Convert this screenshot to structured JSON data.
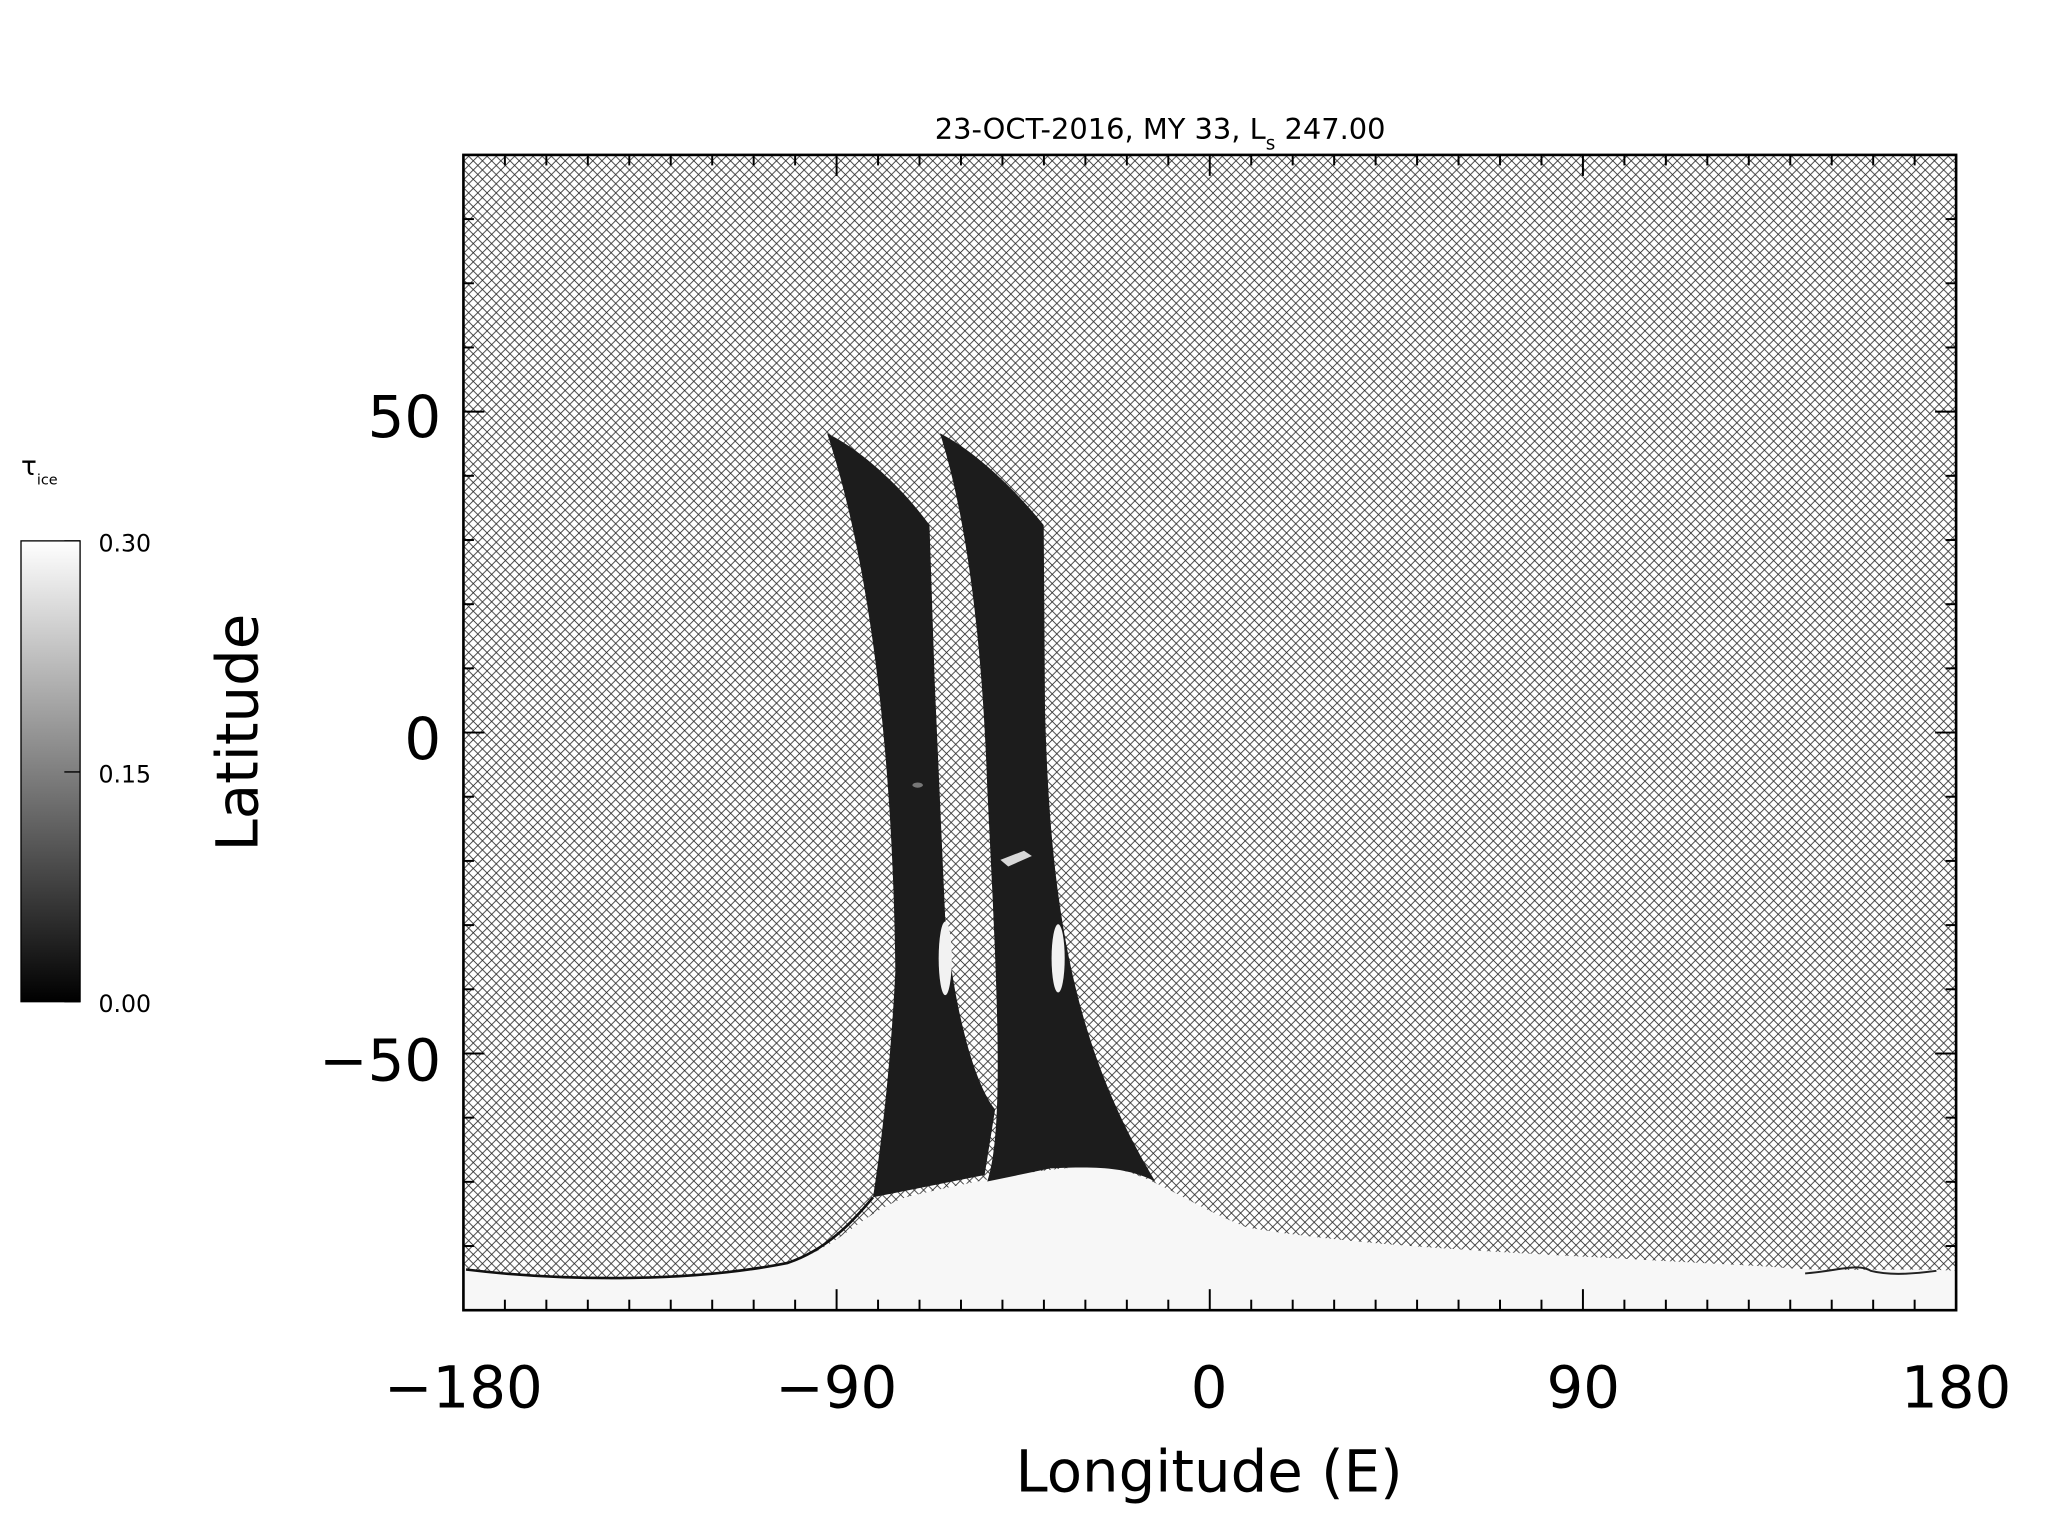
{
  "title": {
    "main": "23-OCT-2016, MY 33,  L",
    "sub": "s",
    "value": " 247.00"
  },
  "colorbar": {
    "label_symbol": "τ",
    "label_sub": "ice",
    "ticks": [
      "0.30",
      "0.15",
      "0.00"
    ],
    "range": [
      0.0,
      0.3
    ],
    "colormap": [
      "#000000",
      "#ffffff"
    ]
  },
  "map": {
    "xlabel": "Longitude (E)",
    "ylabel": "Latitude",
    "xticks": [
      "−180",
      "−90",
      "0",
      "90",
      "180"
    ],
    "yticks": [
      "50",
      "0",
      "−50"
    ],
    "xlim": [
      -180,
      180
    ],
    "ylim": [
      -90,
      90
    ],
    "no_data_pattern": "crosshatch",
    "colors": {
      "swath": "#1c1c1c",
      "polar_ice": "#f7f7f7",
      "hatch_line": "#222222",
      "axes": "#000000"
    },
    "features": [
      {
        "name": "swath-1",
        "lon_range": [
          -92,
          -63
        ],
        "lat_range": [
          -72,
          47
        ]
      },
      {
        "name": "swath-2",
        "lon_range": [
          -65,
          -10
        ],
        "lat_range": [
          -70,
          47
        ]
      },
      {
        "name": "south-polar-cap",
        "lat_max": -70
      }
    ]
  }
}
